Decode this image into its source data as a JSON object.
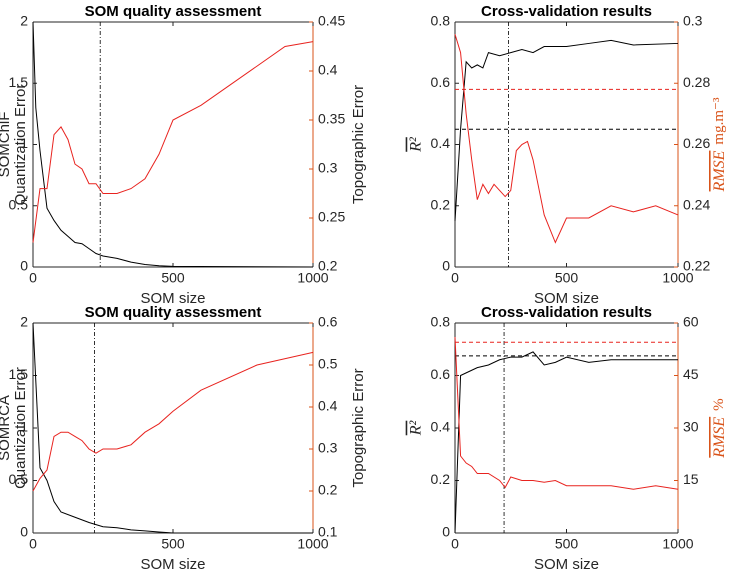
{
  "chart_data": [
    {
      "type": "line",
      "title": "SOM quality assessment",
      "row_label": "SOMChlF",
      "ylabel": "Quantization Error",
      "y2label": "Topographic Error",
      "xlabel": "SOM size",
      "xlim": [
        0,
        1000
      ],
      "xticks": [
        0,
        500,
        1000
      ],
      "ylim": [
        0,
        2
      ],
      "yticks": [
        0,
        0.5,
        1,
        1.5,
        2
      ],
      "y2lim": [
        0.2,
        0.45
      ],
      "y2ticks": [
        0.2,
        0.25,
        0.3,
        0.35,
        0.4,
        0.45
      ],
      "y2color": "#d95319",
      "vline": 240,
      "series": [
        {
          "color": "#000000",
          "x": [
            0,
            10,
            25,
            50,
            75,
            100,
            125,
            150,
            175,
            200,
            225,
            250,
            300,
            350,
            400,
            450,
            500,
            1000
          ],
          "values": [
            2,
            1.3,
            0.95,
            0.48,
            0.38,
            0.3,
            0.25,
            0.2,
            0.19,
            0.15,
            0.11,
            0.09,
            0.07,
            0.04,
            0.02,
            0.01,
            0.005,
            0
          ]
        },
        {
          "color": "#e8231f",
          "axis": "y2",
          "x": [
            0,
            25,
            50,
            75,
            100,
            125,
            150,
            175,
            200,
            225,
            250,
            300,
            350,
            400,
            450,
            500,
            600,
            700,
            800,
            900,
            1000
          ],
          "values": [
            0.225,
            0.28,
            0.28,
            0.335,
            0.343,
            0.33,
            0.305,
            0.3,
            0.285,
            0.285,
            0.275,
            0.275,
            0.28,
            0.29,
            0.315,
            0.35,
            0.365,
            0.385,
            0.405,
            0.425,
            0.43
          ]
        }
      ]
    },
    {
      "type": "line",
      "title": "Cross-validation results",
      "ylabel": "R²",
      "y2label": "RMSE",
      "y2unit": "mg.m⁻³",
      "xlabel": "SOM size",
      "xlim": [
        0,
        1000
      ],
      "xticks": [
        0,
        500,
        1000
      ],
      "ylim": [
        0,
        0.8
      ],
      "yticks": [
        0,
        0.2,
        0.4,
        0.6,
        0.8
      ],
      "y2lim": [
        0.22,
        0.3
      ],
      "y2ticks": [
        0.22,
        0.24,
        0.26,
        0.28,
        0.3
      ],
      "y2color": "#d95319",
      "vline": 240,
      "hlines": [
        {
          "value": 0.45,
          "color": "#000000"
        },
        {
          "value": 0.278,
          "color": "#e8231f",
          "axis": "y2"
        }
      ],
      "series": [
        {
          "color": "#000000",
          "x": [
            0,
            25,
            50,
            75,
            100,
            125,
            150,
            200,
            250,
            300,
            350,
            400,
            500,
            600,
            700,
            800,
            1000
          ],
          "values": [
            0.15,
            0.45,
            0.67,
            0.65,
            0.66,
            0.65,
            0.7,
            0.69,
            0.7,
            0.71,
            0.7,
            0.72,
            0.72,
            0.73,
            0.74,
            0.725,
            0.73
          ]
        },
        {
          "color": "#e8231f",
          "axis": "y2",
          "x": [
            0,
            25,
            50,
            75,
            100,
            125,
            150,
            175,
            200,
            225,
            250,
            275,
            300,
            325,
            350,
            400,
            450,
            500,
            600,
            700,
            800,
            900,
            1000
          ],
          "values": [
            0.296,
            0.29,
            0.27,
            0.255,
            0.242,
            0.247,
            0.244,
            0.247,
            0.245,
            0.243,
            0.245,
            0.258,
            0.26,
            0.261,
            0.255,
            0.237,
            0.228,
            0.236,
            0.236,
            0.24,
            0.238,
            0.24,
            0.237
          ]
        }
      ]
    },
    {
      "type": "line",
      "title": "SOM quality assessment",
      "row_label": "SOMRCA",
      "ylabel": "Quantization Error",
      "y2label": "Topographic Error",
      "xlabel": "SOM size",
      "xlim": [
        0,
        1000
      ],
      "xticks": [
        0,
        500,
        1000
      ],
      "ylim": [
        0,
        2
      ],
      "yticks": [
        0,
        0.5,
        1,
        1.5,
        2
      ],
      "y2lim": [
        0.1,
        0.6
      ],
      "y2ticks": [
        0.1,
        0.2,
        0.3,
        0.4,
        0.5,
        0.6
      ],
      "y2color": "#d95319",
      "vline": 220,
      "series": [
        {
          "color": "#000000",
          "x": [
            0,
            25,
            50,
            75,
            100,
            150,
            200,
            225,
            250,
            300,
            350,
            400,
            450,
            500,
            1000
          ],
          "values": [
            2,
            0.62,
            0.5,
            0.3,
            0.2,
            0.15,
            0.1,
            0.08,
            0.06,
            0.05,
            0.03,
            0.02,
            0.01,
            0,
            0
          ]
        },
        {
          "color": "#e8231f",
          "axis": "y2",
          "x": [
            0,
            25,
            50,
            75,
            100,
            125,
            150,
            175,
            200,
            225,
            250,
            300,
            350,
            400,
            450,
            500,
            600,
            800,
            1000
          ],
          "values": [
            0.2,
            0.23,
            0.25,
            0.33,
            0.34,
            0.34,
            0.33,
            0.32,
            0.3,
            0.29,
            0.3,
            0.3,
            0.31,
            0.34,
            0.36,
            0.39,
            0.44,
            0.5,
            0.53
          ]
        }
      ]
    },
    {
      "type": "line",
      "title": "Cross-validation results",
      "ylabel": "R²",
      "y2label": "RMSE",
      "y2unit": "%",
      "xlabel": "SOM size",
      "xlim": [
        0,
        1000
      ],
      "xticks": [
        0,
        500,
        1000
      ],
      "ylim": [
        0,
        0.8
      ],
      "yticks": [
        0,
        0.2,
        0.4,
        0.6,
        0.8
      ],
      "y2lim": [
        0,
        60
      ],
      "y2ticks": [
        15,
        30,
        45,
        60
      ],
      "y2color": "#d95319",
      "vline": 220,
      "hlines": [
        {
          "value": 0.675,
          "color": "#000000"
        },
        {
          "value": 54.5,
          "color": "#e8231f",
          "axis": "y2"
        }
      ],
      "series": [
        {
          "color": "#000000",
          "x": [
            0,
            25,
            50,
            75,
            100,
            150,
            200,
            225,
            250,
            300,
            350,
            400,
            450,
            500,
            600,
            700,
            800,
            1000
          ],
          "values": [
            0,
            0.6,
            0.61,
            0.62,
            0.63,
            0.64,
            0.66,
            0.665,
            0.67,
            0.67,
            0.69,
            0.64,
            0.65,
            0.67,
            0.65,
            0.66,
            0.66,
            0.66
          ]
        },
        {
          "color": "#e8231f",
          "axis": "y2",
          "x": [
            0,
            25,
            50,
            75,
            100,
            150,
            200,
            225,
            250,
            300,
            350,
            400,
            450,
            500,
            600,
            700,
            800,
            900,
            1000
          ],
          "values": [
            56,
            22,
            20,
            19,
            17,
            17,
            15,
            13,
            16,
            15,
            15,
            14.5,
            15,
            13.5,
            13.5,
            13.5,
            12.5,
            13.5,
            12.5
          ]
        }
      ]
    }
  ]
}
